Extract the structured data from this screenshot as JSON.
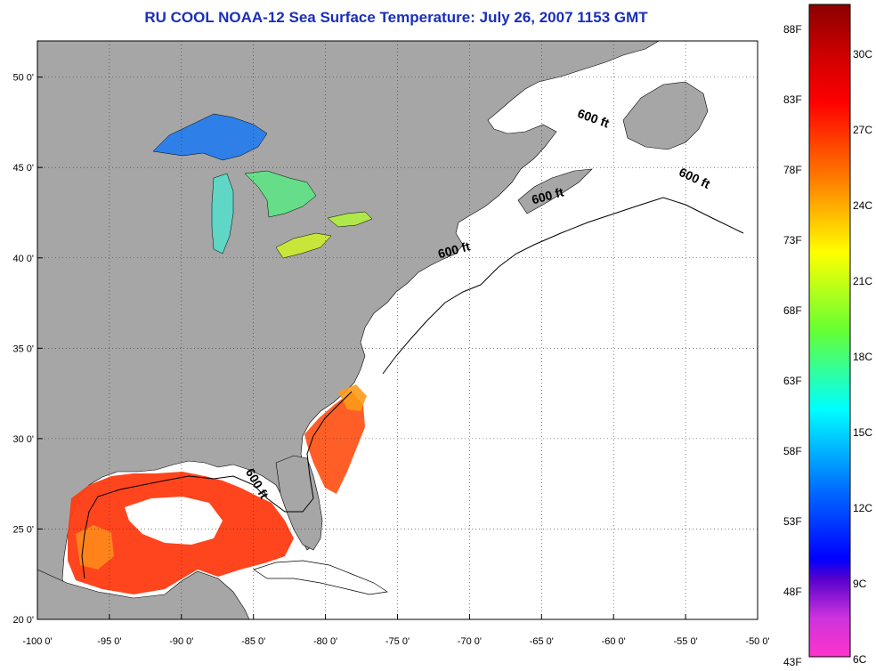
{
  "title": "RU COOL  NOAA-12  Sea Surface Temperature:  July 26, 2007 1153 GMT",
  "map": {
    "lon_range": [
      -100,
      -50
    ],
    "lat_range": [
      20,
      52
    ],
    "lon_ticks": [
      {
        "value": -100,
        "label": "-100 0'"
      },
      {
        "value": -95,
        "label": "-95 0'"
      },
      {
        "value": -90,
        "label": "-90 0'"
      },
      {
        "value": -85,
        "label": "-85 0'"
      },
      {
        "value": -80,
        "label": "-80 0'"
      },
      {
        "value": -75,
        "label": "-75 0'"
      },
      {
        "value": -70,
        "label": "-70 0'"
      },
      {
        "value": -65,
        "label": "-65 0'"
      },
      {
        "value": -60,
        "label": "-60 0'"
      },
      {
        "value": -55,
        "label": "-55 0'"
      },
      {
        "value": -50,
        "label": "-50 0'"
      }
    ],
    "lat_ticks": [
      {
        "value": 50,
        "label": "50 0'"
      },
      {
        "value": 45,
        "label": "45 0'"
      },
      {
        "value": 40,
        "label": "40 0'"
      },
      {
        "value": 35,
        "label": "35 0'"
      },
      {
        "value": 30,
        "label": "30 0'"
      },
      {
        "value": 25,
        "label": "25 0'"
      },
      {
        "value": 20,
        "label": "20 0'"
      }
    ],
    "land_color": "#a6a6a6",
    "nodata_color": "#ffffff",
    "contour_labels": [
      {
        "text": "600 ft",
        "lon": -61.5,
        "lat": 47.5,
        "rotate": 20
      },
      {
        "text": "600 ft",
        "lon": -54.5,
        "lat": 44.2,
        "rotate": 25
      },
      {
        "text": "600 ft",
        "lon": -64.5,
        "lat": 43.2,
        "rotate": -15
      },
      {
        "text": "600 ft",
        "lon": -71.0,
        "lat": 40.2,
        "rotate": -15
      },
      {
        "text": "600 ft",
        "lon": -85.0,
        "lat": 27.4,
        "rotate": 60
      }
    ]
  },
  "colorbar": {
    "fahrenheit_labels": [
      "88F",
      "83F",
      "78F",
      "73F",
      "68F",
      "63F",
      "58F",
      "53F",
      "48F",
      "43F"
    ],
    "celsius_labels": [
      "30C",
      "27C",
      "24C",
      "21C",
      "18C",
      "15C",
      "12C",
      "9C",
      "6C"
    ],
    "temp_range_c": [
      6,
      32
    ],
    "colors_top_to_bottom": [
      "#8b0000",
      "#ff0000",
      "#ff7f00",
      "#ffff00",
      "#7fff00",
      "#00ffff",
      "#0000ff",
      "#7f00ff",
      "#ff33cc"
    ]
  }
}
